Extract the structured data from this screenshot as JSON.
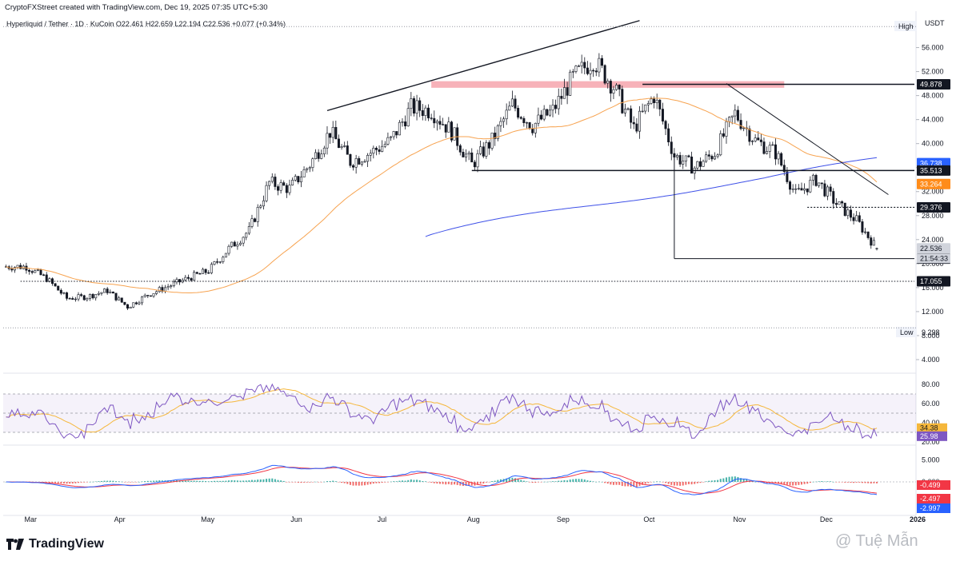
{
  "header": {
    "credit": "CryptoFXStreet created with TradingView.com, Dec 19, 2025 07:35 UTC+5:30",
    "legend": "Hyperliquid / Tether · 1D · KuCoin O22.461 H22.659 L22.194 C22.536 +0.077 (+0.34%)"
  },
  "brand": {
    "name": "TradingView",
    "watermark": "@ Tuệ Mẫn"
  },
  "colors": {
    "up": "#131722",
    "down": "#131722",
    "ma_fast": "#f7a350",
    "ma_slow": "#3f51e8",
    "rsi": "#7e57c2",
    "rsi_signal": "#f5b73b",
    "macd": "#2962ff",
    "macd_signal": "#f23645",
    "hist_up": "#26a69a",
    "hist_down": "#ef5350",
    "resistance_zone": "#f6a5ad"
  },
  "price_axis": {
    "currency": "USDT",
    "high_label": "High",
    "low_label": "Low",
    "low_value": "9.298",
    "ticks": [
      "56.000",
      "52.000",
      "48.000",
      "44.000",
      "40.000",
      "36.000",
      "32.000",
      "28.000",
      "24.000",
      "20.000",
      "16.000",
      "12.000",
      "8.000",
      "4.000"
    ],
    "tags": [
      {
        "text": "49.878",
        "value": 49.878,
        "bg": "#131722",
        "fg": "#ffffff"
      },
      {
        "text": "36.738",
        "value": 36.738,
        "bg": "#2962ff",
        "fg": "#ffffff"
      },
      {
        "text": "35.513",
        "value": 35.513,
        "bg": "#131722",
        "fg": "#ffffff"
      },
      {
        "text": "33.264",
        "value": 33.264,
        "bg": "#ff8c1a",
        "fg": "#ffffff"
      },
      {
        "text": "29.376",
        "value": 29.376,
        "bg": "#131722",
        "fg": "#ffffff"
      },
      {
        "text": "22.536",
        "value": 22.536,
        "bg": "#d1d4dc",
        "fg": "#131722"
      },
      {
        "text": "20.824",
        "value": 20.824,
        "bg": "#131722",
        "fg": "#ffffff"
      },
      {
        "text": "17.055",
        "value": 17.055,
        "bg": "#131722",
        "fg": "#ffffff"
      }
    ],
    "countdown": "21:54:33"
  },
  "rsi_axis": {
    "ticks": [
      "80.00",
      "60.00",
      "40.00",
      "20.00"
    ],
    "tags": [
      {
        "text": "34.38",
        "value": 34.38,
        "bg": "#f5b73b",
        "fg": "#131722"
      },
      {
        "text": "25.98",
        "value": 25.98,
        "bg": "#7e57c2",
        "fg": "#ffffff"
      }
    ]
  },
  "macd_axis": {
    "ticks": [
      "5.000",
      "0.000"
    ],
    "tags": [
      {
        "text": "-0.499",
        "value": -0.499,
        "bg": "#f23645",
        "fg": "#ffffff"
      },
      {
        "text": "-2.497",
        "value": -2.497,
        "bg": "#f23645",
        "fg": "#ffffff"
      },
      {
        "text": "-2.997",
        "value": -2.997,
        "bg": "#2962ff",
        "fg": "#ffffff"
      }
    ]
  },
  "time_axis": {
    "labels": [
      "Mar",
      "Apr",
      "May",
      "Jun",
      "Jul",
      "Aug",
      "Sep",
      "Oct",
      "Nov",
      "Dec",
      "2026"
    ]
  },
  "chart_data": {
    "type": "candlestick",
    "symbol": "Hyperliquid / Tether",
    "timeframe": "1D",
    "exchange": "KuCoin",
    "ohlc_last": {
      "open": 22.461,
      "high": 22.659,
      "low": 22.194,
      "close": 22.536,
      "change": 0.077,
      "change_pct": 0.34
    },
    "ylim": [
      2,
      61
    ],
    "levels": [
      49.878,
      35.513,
      29.376,
      20.824,
      17.055
    ],
    "weekly_closes": [
      {
        "date": "2025-02-28",
        "close": 19.5
      },
      {
        "date": "2025-03-07",
        "close": 17.5
      },
      {
        "date": "2025-03-14",
        "close": 14.2
      },
      {
        "date": "2025-03-21",
        "close": 14.5
      },
      {
        "date": "2025-03-28",
        "close": 15.5
      },
      {
        "date": "2025-04-04",
        "close": 12.8
      },
      {
        "date": "2025-04-11",
        "close": 14.8
      },
      {
        "date": "2025-04-18",
        "close": 16.2
      },
      {
        "date": "2025-04-25",
        "close": 17.6
      },
      {
        "date": "2025-05-02",
        "close": 18.8
      },
      {
        "date": "2025-05-09",
        "close": 22.5
      },
      {
        "date": "2025-05-16",
        "close": 25.5
      },
      {
        "date": "2025-05-23",
        "close": 33.5
      },
      {
        "date": "2025-05-30",
        "close": 32.5
      },
      {
        "date": "2025-06-06",
        "close": 36.5
      },
      {
        "date": "2025-06-13",
        "close": 42.0
      },
      {
        "date": "2025-06-20",
        "close": 37.0
      },
      {
        "date": "2025-06-27",
        "close": 38.5
      },
      {
        "date": "2025-07-04",
        "close": 40.5
      },
      {
        "date": "2025-07-11",
        "close": 46.0
      },
      {
        "date": "2025-07-18",
        "close": 45.5
      },
      {
        "date": "2025-07-25",
        "close": 42.0
      },
      {
        "date": "2025-08-01",
        "close": 36.5
      },
      {
        "date": "2025-08-08",
        "close": 40.5
      },
      {
        "date": "2025-08-15",
        "close": 46.5
      },
      {
        "date": "2025-08-22",
        "close": 43.0
      },
      {
        "date": "2025-08-29",
        "close": 45.5
      },
      {
        "date": "2025-09-05",
        "close": 51.0
      },
      {
        "date": "2025-09-12",
        "close": 54.0
      },
      {
        "date": "2025-09-19",
        "close": 49.5
      },
      {
        "date": "2025-09-26",
        "close": 42.5
      },
      {
        "date": "2025-10-03",
        "close": 48.0
      },
      {
        "date": "2025-10-10",
        "close": 38.0
      },
      {
        "date": "2025-10-17",
        "close": 36.0
      },
      {
        "date": "2025-10-24",
        "close": 38.5
      },
      {
        "date": "2025-10-31",
        "close": 45.0
      },
      {
        "date": "2025-11-07",
        "close": 40.5
      },
      {
        "date": "2025-11-14",
        "close": 38.5
      },
      {
        "date": "2025-11-21",
        "close": 31.5
      },
      {
        "date": "2025-11-28",
        "close": 34.0
      },
      {
        "date": "2025-12-05",
        "close": 30.0
      },
      {
        "date": "2025-12-12",
        "close": 27.2
      },
      {
        "date": "2025-12-19",
        "close": 22.536
      }
    ],
    "ma_fast_last": 33.264,
    "ma_slow_last": 36.738,
    "rsi": {
      "value": 25.98,
      "signal": 34.38,
      "upper": 70,
      "mid": 50,
      "lower": 30,
      "ylim": [
        20,
        85
      ]
    },
    "macd": {
      "histogram": -0.499,
      "signal": -2.497,
      "macd": -2.997
    }
  }
}
